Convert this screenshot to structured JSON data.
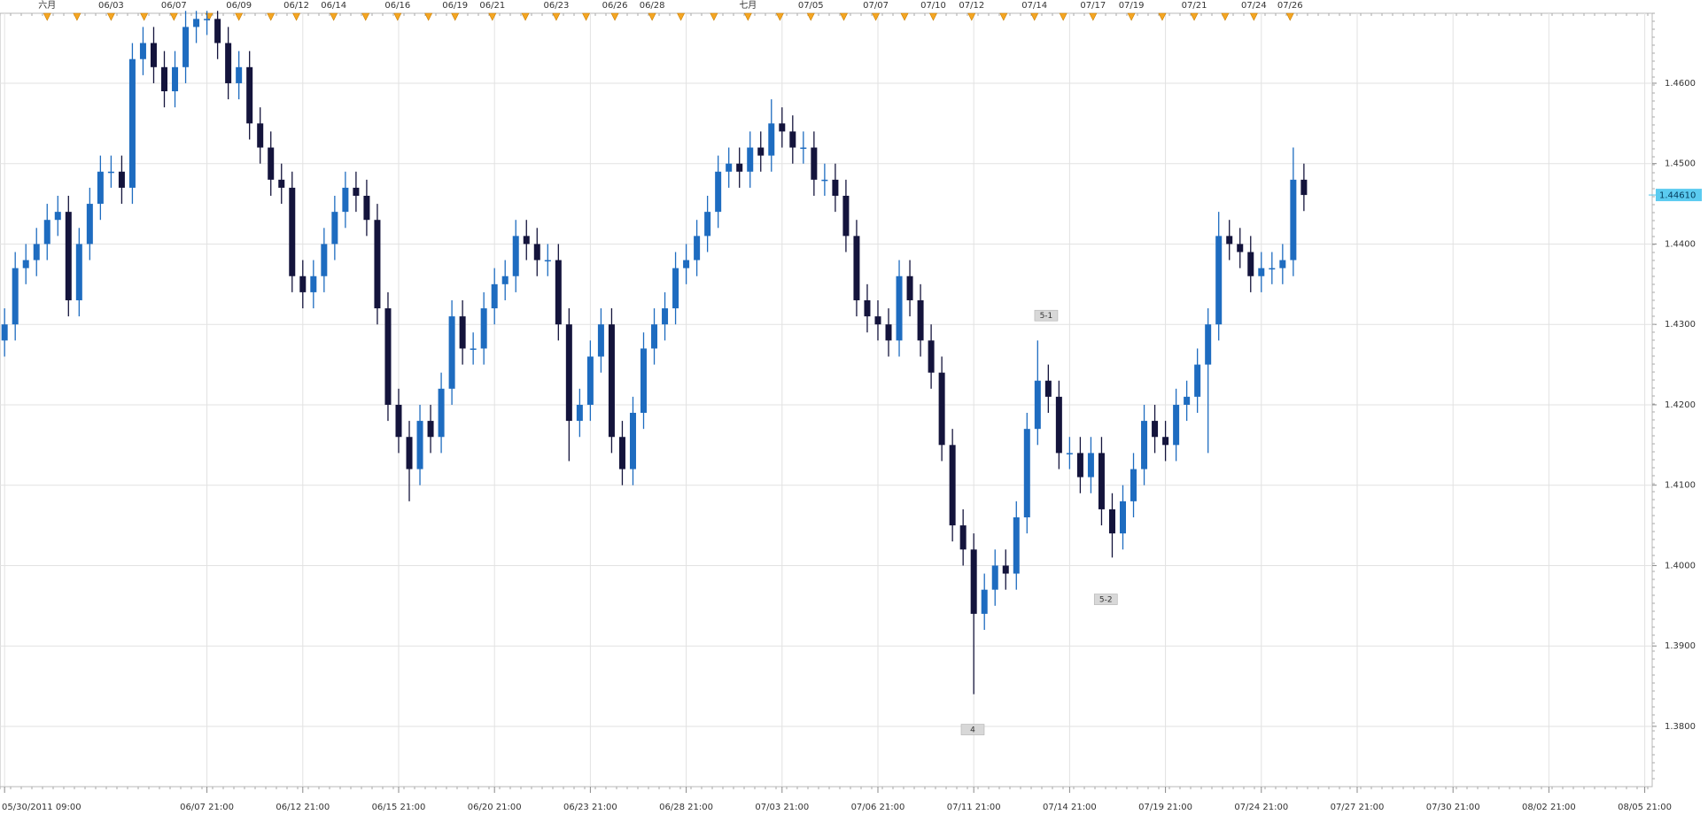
{
  "chart_data": {
    "type": "candlestick",
    "open": [
      1.428,
      1.43,
      1.437,
      1.438,
      1.44,
      1.443,
      1.444,
      1.433,
      1.44,
      1.445,
      1.449,
      1.449,
      1.447,
      1.463,
      1.465,
      1.462,
      1.459,
      1.462,
      1.467,
      1.468,
      1.468,
      1.465,
      1.46,
      1.462,
      1.455,
      1.452,
      1.448,
      1.447,
      1.436,
      1.434,
      1.436,
      1.44,
      1.444,
      1.447,
      1.446,
      1.443,
      1.432,
      1.42,
      1.416,
      1.412,
      1.418,
      1.416,
      1.422,
      1.431,
      1.427,
      1.427,
      1.432,
      1.435,
      1.436,
      1.441,
      1.44,
      1.438,
      1.438,
      1.43,
      1.418,
      1.42,
      1.426,
      1.43,
      1.416,
      1.412,
      1.419,
      1.427,
      1.43,
      1.432,
      1.437,
      1.438,
      1.441,
      1.444,
      1.449,
      1.45,
      1.449,
      1.452,
      1.451,
      1.455,
      1.454,
      1.452,
      1.452,
      1.448,
      1.448,
      1.446,
      1.441,
      1.433,
      1.431,
      1.43,
      1.428,
      1.436,
      1.433,
      1.428,
      1.424,
      1.415,
      1.405,
      1.402,
      1.394,
      1.397,
      1.4,
      1.399,
      1.406,
      1.417,
      1.423,
      1.421,
      1.414,
      1.414,
      1.411,
      1.414,
      1.407,
      1.404,
      1.408,
      1.412,
      1.418,
      1.416,
      1.415,
      1.42,
      1.421,
      1.425,
      1.43,
      1.441,
      1.44,
      1.439,
      1.436,
      1.437,
      1.437,
      1.438,
      1.448
    ],
    "high": [
      1.432,
      1.439,
      1.44,
      1.442,
      1.445,
      1.446,
      1.446,
      1.442,
      1.447,
      1.451,
      1.451,
      1.451,
      1.465,
      1.467,
      1.467,
      1.464,
      1.464,
      1.469,
      1.469,
      1.469,
      1.469,
      1.467,
      1.464,
      1.464,
      1.457,
      1.454,
      1.45,
      1.449,
      1.438,
      1.438,
      1.442,
      1.446,
      1.449,
      1.449,
      1.448,
      1.445,
      1.434,
      1.422,
      1.418,
      1.42,
      1.42,
      1.424,
      1.433,
      1.433,
      1.429,
      1.434,
      1.437,
      1.438,
      1.443,
      1.443,
      1.442,
      1.44,
      1.44,
      1.432,
      1.422,
      1.428,
      1.432,
      1.432,
      1.418,
      1.421,
      1.429,
      1.432,
      1.434,
      1.439,
      1.44,
      1.443,
      1.446,
      1.451,
      1.452,
      1.452,
      1.454,
      1.454,
      1.458,
      1.457,
      1.456,
      1.454,
      1.454,
      1.45,
      1.45,
      1.448,
      1.443,
      1.435,
      1.433,
      1.432,
      1.438,
      1.438,
      1.435,
      1.43,
      1.426,
      1.417,
      1.407,
      1.404,
      1.399,
      1.402,
      1.402,
      1.408,
      1.419,
      1.428,
      1.425,
      1.423,
      1.416,
      1.416,
      1.416,
      1.416,
      1.409,
      1.41,
      1.414,
      1.42,
      1.42,
      1.418,
      1.422,
      1.423,
      1.427,
      1.432,
      1.444,
      1.443,
      1.442,
      1.441,
      1.439,
      1.439,
      1.44,
      1.452,
      1.45
    ],
    "low": [
      1.426,
      1.428,
      1.435,
      1.436,
      1.438,
      1.441,
      1.431,
      1.431,
      1.438,
      1.443,
      1.447,
      1.445,
      1.445,
      1.461,
      1.46,
      1.457,
      1.457,
      1.46,
      1.465,
      1.466,
      1.463,
      1.458,
      1.458,
      1.453,
      1.45,
      1.446,
      1.445,
      1.434,
      1.432,
      1.432,
      1.434,
      1.438,
      1.442,
      1.444,
      1.441,
      1.43,
      1.418,
      1.414,
      1.408,
      1.41,
      1.414,
      1.414,
      1.42,
      1.425,
      1.425,
      1.425,
      1.43,
      1.433,
      1.434,
      1.438,
      1.436,
      1.436,
      1.428,
      1.413,
      1.416,
      1.418,
      1.424,
      1.414,
      1.41,
      1.41,
      1.417,
      1.425,
      1.428,
      1.43,
      1.435,
      1.436,
      1.439,
      1.442,
      1.447,
      1.447,
      1.447,
      1.449,
      1.449,
      1.452,
      1.45,
      1.45,
      1.446,
      1.446,
      1.444,
      1.439,
      1.431,
      1.429,
      1.428,
      1.426,
      1.426,
      1.431,
      1.426,
      1.422,
      1.413,
      1.403,
      1.4,
      1.384,
      1.392,
      1.395,
      1.397,
      1.397,
      1.404,
      1.415,
      1.419,
      1.412,
      1.412,
      1.409,
      1.409,
      1.405,
      1.401,
      1.402,
      1.406,
      1.41,
      1.414,
      1.413,
      1.413,
      1.418,
      1.419,
      1.414,
      1.428,
      1.438,
      1.437,
      1.434,
      1.434,
      1.435,
      1.435,
      1.436,
      1.4441
    ],
    "close": [
      1.43,
      1.437,
      1.438,
      1.44,
      1.443,
      1.444,
      1.433,
      1.44,
      1.445,
      1.449,
      1.449,
      1.447,
      1.463,
      1.465,
      1.462,
      1.459,
      1.462,
      1.467,
      1.468,
      1.468,
      1.465,
      1.46,
      1.462,
      1.455,
      1.452,
      1.448,
      1.447,
      1.436,
      1.434,
      1.436,
      1.44,
      1.444,
      1.447,
      1.446,
      1.443,
      1.432,
      1.42,
      1.416,
      1.412,
      1.418,
      1.416,
      1.422,
      1.431,
      1.427,
      1.427,
      1.432,
      1.435,
      1.436,
      1.441,
      1.44,
      1.438,
      1.438,
      1.43,
      1.418,
      1.42,
      1.426,
      1.43,
      1.416,
      1.412,
      1.419,
      1.427,
      1.43,
      1.432,
      1.437,
      1.438,
      1.441,
      1.444,
      1.449,
      1.45,
      1.449,
      1.452,
      1.451,
      1.455,
      1.454,
      1.452,
      1.452,
      1.448,
      1.448,
      1.446,
      1.441,
      1.433,
      1.431,
      1.43,
      1.428,
      1.436,
      1.433,
      1.428,
      1.424,
      1.415,
      1.405,
      1.402,
      1.394,
      1.397,
      1.4,
      1.399,
      1.406,
      1.417,
      1.423,
      1.421,
      1.414,
      1.414,
      1.411,
      1.414,
      1.407,
      1.404,
      1.408,
      1.412,
      1.418,
      1.416,
      1.415,
      1.42,
      1.421,
      1.425,
      1.43,
      1.441,
      1.44,
      1.439,
      1.436,
      1.437,
      1.437,
      1.438,
      1.448,
      1.4461
    ],
    "up_color": "#1e6cc0",
    "down_color": "#14143c",
    "xlim": [
      -0.43,
      154.7
    ],
    "ylim": [
      1.3725,
      1.4687
    ],
    "yticks": [
      {
        "value": 1.38,
        "label": "1.3800"
      },
      {
        "value": 1.39,
        "label": "1.3900"
      },
      {
        "value": 1.4,
        "label": "1.4000"
      },
      {
        "value": 1.41,
        "label": "1.4100"
      },
      {
        "value": 1.42,
        "label": "1.4200"
      },
      {
        "value": 1.43,
        "label": "1.4300"
      },
      {
        "value": 1.44,
        "label": "1.4400"
      },
      {
        "value": 1.45,
        "label": "1.4500"
      },
      {
        "value": 1.46,
        "label": "1.4600"
      }
    ],
    "xticks": [
      {
        "value": 0,
        "label": "05/30/2011 09:00"
      },
      {
        "value": 19,
        "label": "06/07 21:00"
      },
      {
        "value": 28,
        "label": "06/12 21:00"
      },
      {
        "value": 37,
        "label": "06/15 21:00"
      },
      {
        "value": 46,
        "label": "06/20 21:00"
      },
      {
        "value": 55,
        "label": "06/23 21:00"
      },
      {
        "value": 64,
        "label": "06/28 21:00"
      },
      {
        "value": 73,
        "label": "07/03 21:00"
      },
      {
        "value": 82,
        "label": "07/06 21:00"
      },
      {
        "value": 91,
        "label": "07/11 21:00"
      },
      {
        "value": 100,
        "label": "07/14 21:00"
      },
      {
        "value": 109,
        "label": "07/19 21:00"
      },
      {
        "value": 118,
        "label": "07/24 21:00"
      },
      {
        "value": 127,
        "label": "07/27 21:00"
      },
      {
        "value": 136,
        "label": "07/30 21:00"
      },
      {
        "value": 145,
        "label": "08/02 21:00"
      },
      {
        "value": 154,
        "label": "08/05 21:00"
      }
    ],
    "top_ticks": [
      {
        "value": 4.0,
        "label": "六月"
      },
      {
        "value": 10.0,
        "label": "06/03"
      },
      {
        "value": 15.9,
        "label": "06/07"
      },
      {
        "value": 22.0,
        "label": "06/09"
      },
      {
        "value": 27.4,
        "label": "06/12"
      },
      {
        "value": 30.9,
        "label": "06/14"
      },
      {
        "value": 36.9,
        "label": "06/16"
      },
      {
        "value": 42.3,
        "label": "06/19"
      },
      {
        "value": 45.8,
        "label": "06/21"
      },
      {
        "value": 51.8,
        "label": "06/23"
      },
      {
        "value": 57.3,
        "label": "06/26"
      },
      {
        "value": 60.8,
        "label": "06/28"
      },
      {
        "value": 69.8,
        "label": "七月"
      },
      {
        "value": 75.7,
        "label": "07/05"
      },
      {
        "value": 81.8,
        "label": "07/07"
      },
      {
        "value": 87.2,
        "label": "07/10"
      },
      {
        "value": 90.8,
        "label": "07/12"
      },
      {
        "value": 96.7,
        "label": "07/14"
      },
      {
        "value": 102.2,
        "label": "07/17"
      },
      {
        "value": 105.8,
        "label": "07/19"
      },
      {
        "value": 111.7,
        "label": "07/21"
      },
      {
        "value": 117.3,
        "label": "07/24"
      },
      {
        "value": 120.7,
        "label": "07/26"
      }
    ],
    "annotations": [
      "5-1",
      "5-2",
      "4"
    ],
    "last_price": {
      "value": 1.4461,
      "label": "1.44610"
    },
    "grid": true
  }
}
